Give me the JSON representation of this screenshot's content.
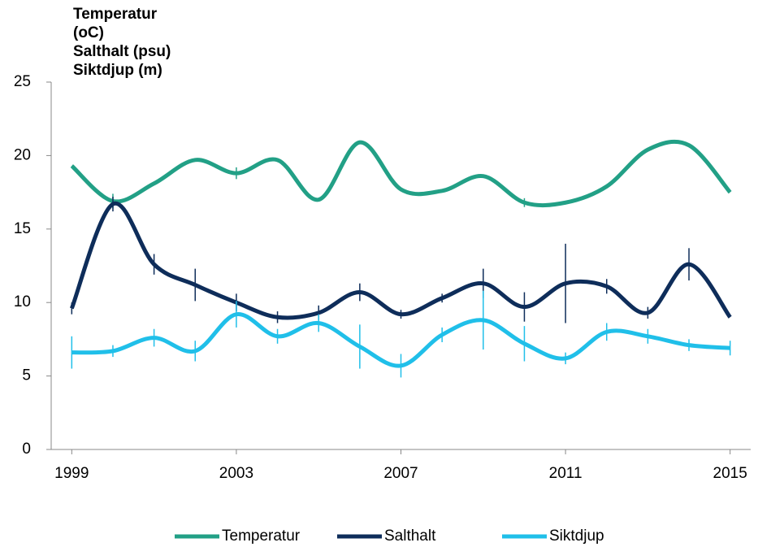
{
  "chart_data": {
    "type": "line",
    "ylabel": [
      "Temperatur",
      "(oC)",
      "Salthalt (psu)",
      "Siktdjup (m)"
    ],
    "x": [
      1999,
      2000,
      2001,
      2002,
      2003,
      2004,
      2005,
      2006,
      2007,
      2008,
      2009,
      2010,
      2011,
      2012,
      2013,
      2014,
      2015
    ],
    "series": [
      {
        "name": "Temperatur",
        "color": "#22a086",
        "values": [
          19.3,
          16.9,
          18.1,
          19.7,
          18.8,
          19.7,
          17.0,
          20.9,
          17.7,
          17.6,
          18.6,
          16.8,
          16.8,
          17.9,
          20.4,
          20.7,
          17.5
        ],
        "errors": [
          null,
          0.5,
          null,
          null,
          0.4,
          null,
          null,
          null,
          null,
          null,
          null,
          0.3,
          null,
          null,
          null,
          null,
          null
        ]
      },
      {
        "name": "Salthalt",
        "color": "#0e2d5a",
        "values": [
          9.6,
          16.7,
          12.6,
          11.2,
          10.0,
          9.0,
          9.3,
          10.7,
          9.2,
          10.3,
          11.3,
          9.7,
          11.3,
          11.1,
          9.3,
          12.6,
          9.0
        ],
        "errors": [
          0.4,
          0.5,
          0.7,
          1.1,
          0.6,
          0.4,
          0.5,
          0.6,
          0.3,
          0.3,
          1.0,
          1.0,
          2.7,
          0.5,
          0.4,
          1.1,
          null
        ]
      },
      {
        "name": "Siktdjup",
        "color": "#20bfe9",
        "values": [
          6.6,
          6.7,
          7.6,
          6.7,
          9.2,
          7.7,
          8.6,
          7.0,
          5.7,
          7.8,
          8.8,
          7.2,
          6.2,
          8.0,
          7.7,
          7.1,
          6.9
        ],
        "errors": [
          1.1,
          0.4,
          0.6,
          0.7,
          0.9,
          0.5,
          0.6,
          1.5,
          0.8,
          0.5,
          2.0,
          1.2,
          0.4,
          0.6,
          0.5,
          0.4,
          0.5
        ]
      }
    ],
    "xlim": [
      1998.5,
      2015.5
    ],
    "xticks": [
      1999,
      2003,
      2007,
      2011,
      2015
    ],
    "ylim": [
      0,
      25
    ],
    "yticks": [
      0,
      5,
      10,
      15,
      20,
      25
    ],
    "grid": false,
    "legend": "bottom"
  }
}
